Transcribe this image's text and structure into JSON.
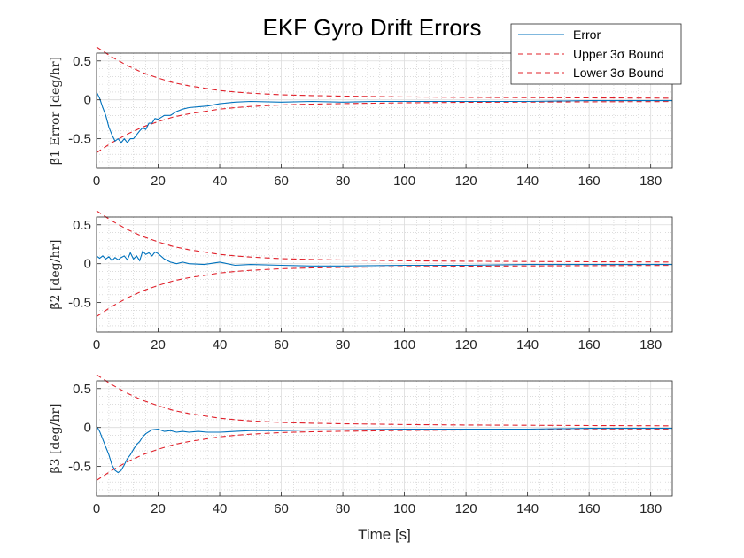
{
  "chart_data": {
    "type": "line",
    "title": "EKF Gyro Drift Errors",
    "legend": {
      "placement": "top-right",
      "entries": [
        "Error",
        "Upper 3σ Bound",
        "Lower 3σ Bound"
      ]
    },
    "colors": {
      "error": "#0072BD",
      "bound": "#E0202A"
    },
    "grid": "on-minor-dotted",
    "xlabel": "Time [s]",
    "xlim": [
      0,
      187
    ],
    "xticks": [
      0,
      20,
      40,
      60,
      80,
      100,
      120,
      140,
      160,
      180
    ],
    "subplots": [
      {
        "ylabel": "β̂1 Error [deg/hr]",
        "ylim": [
          -0.88,
          0.6
        ],
        "yticks": [
          0.5,
          0,
          -0.5
        ],
        "series": [
          {
            "name": "Error",
            "x": [
              0,
              1,
              2,
              3,
              4,
              5,
              6,
              7,
              8,
              9,
              10,
              11,
              12,
              13,
              14,
              15,
              16,
              17,
              18,
              19,
              20,
              22,
              24,
              26,
              28,
              30,
              33,
              36,
              40,
              45,
              50,
              60,
              70,
              80,
              90,
              100,
              120,
              140,
              160,
              187
            ],
            "y": [
              0.1,
              0.02,
              -0.1,
              -0.2,
              -0.35,
              -0.45,
              -0.53,
              -0.5,
              -0.55,
              -0.5,
              -0.55,
              -0.5,
              -0.5,
              -0.45,
              -0.4,
              -0.36,
              -0.38,
              -0.3,
              -0.3,
              -0.24,
              -0.25,
              -0.2,
              -0.2,
              -0.15,
              -0.12,
              -0.1,
              -0.09,
              -0.08,
              -0.05,
              -0.03,
              -0.02,
              -0.03,
              -0.02,
              -0.03,
              -0.02,
              -0.02,
              -0.02,
              -0.02,
              -0.01,
              -0.01
            ]
          },
          {
            "name": "Upper 3σ Bound",
            "x": [
              0,
              5,
              10,
              15,
              20,
              25,
              30,
              35,
              40,
              45,
              50,
              60,
              70,
              80,
              90,
              100,
              120,
              140,
              160,
              187
            ],
            "y": [
              0.68,
              0.55,
              0.44,
              0.35,
              0.28,
              0.22,
              0.18,
              0.15,
              0.12,
              0.1,
              0.085,
              0.065,
              0.055,
              0.048,
              0.043,
              0.038,
              0.032,
              0.028,
              0.025,
              0.022
            ]
          }
        ]
      },
      {
        "ylabel": "β̂2 [deg/hr]",
        "ylim": [
          -0.88,
          0.6
        ],
        "yticks": [
          0.5,
          0,
          -0.5
        ],
        "series": [
          {
            "name": "Error",
            "x": [
              0,
              1,
              2,
              3,
              4,
              5,
              6,
              7,
              8,
              9,
              10,
              11,
              12,
              13,
              14,
              15,
              16,
              17,
              18,
              19,
              20,
              22,
              24,
              26,
              28,
              30,
              35,
              40,
              45,
              50,
              60,
              70,
              80,
              100,
              120,
              140,
              160,
              187
            ],
            "y": [
              0.1,
              0.07,
              0.1,
              0.06,
              0.09,
              0.04,
              0.08,
              0.05,
              0.08,
              0.1,
              0.05,
              0.14,
              0.06,
              0.1,
              0.04,
              0.16,
              0.12,
              0.14,
              0.1,
              0.15,
              0.13,
              0.06,
              0.02,
              0.0,
              0.02,
              0.0,
              -0.01,
              0.02,
              -0.02,
              -0.01,
              -0.02,
              -0.03,
              -0.03,
              -0.02,
              -0.02,
              -0.01,
              -0.01,
              -0.01
            ]
          },
          {
            "name": "Upper 3σ Bound",
            "x": [
              0,
              5,
              10,
              15,
              20,
              25,
              30,
              35,
              40,
              45,
              50,
              60,
              70,
              80,
              90,
              100,
              120,
              140,
              160,
              187
            ],
            "y": [
              0.68,
              0.55,
              0.44,
              0.35,
              0.28,
              0.22,
              0.18,
              0.15,
              0.12,
              0.1,
              0.085,
              0.065,
              0.055,
              0.048,
              0.043,
              0.038,
              0.032,
              0.028,
              0.025,
              0.022
            ]
          }
        ]
      },
      {
        "ylabel": "β̂3 [deg/hr]",
        "ylim": [
          -0.88,
          0.6
        ],
        "yticks": [
          0.5,
          0,
          -0.5
        ],
        "series": [
          {
            "name": "Error",
            "x": [
              0,
              1,
              2,
              3,
              4,
              5,
              6,
              7,
              8,
              9,
              10,
              11,
              12,
              13,
              14,
              15,
              16,
              18,
              20,
              22,
              24,
              26,
              28,
              30,
              33,
              36,
              40,
              45,
              50,
              60,
              70,
              80,
              100,
              120,
              140,
              160,
              187
            ],
            "y": [
              0.02,
              -0.05,
              -0.15,
              -0.25,
              -0.35,
              -0.48,
              -0.55,
              -0.58,
              -0.55,
              -0.48,
              -0.4,
              -0.35,
              -0.28,
              -0.22,
              -0.18,
              -0.12,
              -0.08,
              -0.03,
              -0.02,
              -0.05,
              -0.04,
              -0.06,
              -0.05,
              -0.06,
              -0.05,
              -0.06,
              -0.06,
              -0.05,
              -0.04,
              -0.04,
              -0.03,
              -0.03,
              -0.02,
              -0.02,
              -0.02,
              -0.01,
              -0.01
            ]
          },
          {
            "name": "Upper 3σ Bound",
            "x": [
              0,
              5,
              10,
              15,
              20,
              25,
              30,
              35,
              40,
              45,
              50,
              60,
              70,
              80,
              90,
              100,
              120,
              140,
              160,
              187
            ],
            "y": [
              0.68,
              0.55,
              0.44,
              0.35,
              0.28,
              0.22,
              0.18,
              0.15,
              0.12,
              0.1,
              0.085,
              0.065,
              0.055,
              0.048,
              0.043,
              0.038,
              0.032,
              0.028,
              0.025,
              0.022
            ]
          }
        ]
      }
    ]
  }
}
